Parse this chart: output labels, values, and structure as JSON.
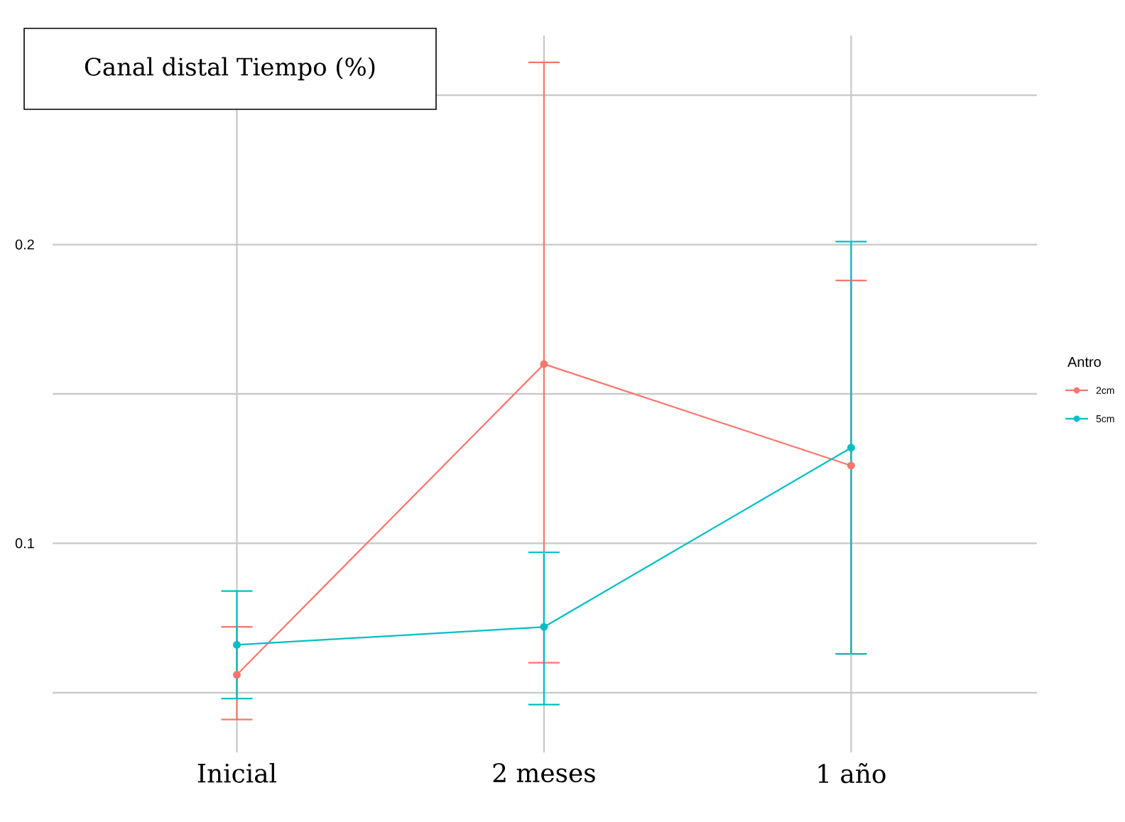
{
  "chart_data": {
    "type": "line",
    "title": "Canal distal Tiempo (%)",
    "categories": [
      "Inicial",
      "2 meses",
      "1 año"
    ],
    "series": [
      {
        "name": "2cm",
        "color": "#f8766d",
        "values": [
          0.056,
          0.16,
          0.126
        ],
        "errors": [
          [
            0.041,
            0.072
          ],
          [
            0.06,
            0.261
          ],
          [
            0.063,
            0.188
          ]
        ]
      },
      {
        "name": "5cm",
        "color": "#00bfc4",
        "values": [
          0.066,
          0.072,
          0.132
        ],
        "errors": [
          [
            0.048,
            0.084
          ],
          [
            0.046,
            0.097
          ],
          [
            0.063,
            0.201
          ]
        ]
      }
    ],
    "ylim": [
      0.03,
      0.27
    ],
    "yticks": [
      {
        "value": 0.05,
        "label": null
      },
      0.1,
      {
        "value": 0.15,
        "label": null
      },
      0.2,
      {
        "value": 0.25,
        "label": null
      }
    ],
    "grid": true,
    "legend": "right",
    "legend_title": "Antro",
    "marker": "circle",
    "line_style": "solid"
  }
}
